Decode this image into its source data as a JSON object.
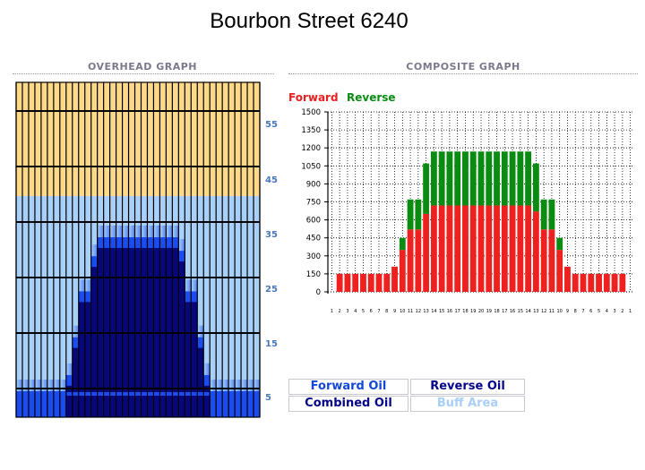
{
  "title": "Bourbon Street 6240",
  "overhead": {
    "title": "OVERHEAD GRAPH",
    "scale_labels": [
      "55",
      "45",
      "35",
      "25",
      "15",
      "5"
    ],
    "colors": {
      "buff": "#ffd98a",
      "light_blue": "#a8d0f8",
      "navy": "#07077a",
      "bright_blue": "#1a4cf0",
      "grid": "#000000"
    }
  },
  "composite": {
    "title": "COMPOSITE GRAPH",
    "legend_forward": "Forward",
    "legend_reverse": "Reverse",
    "forward_color": "#ee2020",
    "reverse_color": "#0a8c12"
  },
  "legend_boxes": {
    "forward_oil": "Forward Oil",
    "reverse_oil": "Reverse Oil",
    "combined_oil": "Combined Oil",
    "buff_area": "Buff Area"
  },
  "chart_data": {
    "type": "bar",
    "stacked": true,
    "categories": [
      "1",
      "2",
      "3",
      "4",
      "5",
      "6",
      "7",
      "8",
      "9",
      "10",
      "11",
      "12",
      "13",
      "14",
      "15",
      "16",
      "17",
      "18",
      "19",
      "20",
      "19",
      "18",
      "17",
      "16",
      "15",
      "14",
      "13",
      "12",
      "11",
      "10",
      "9",
      "8",
      "7",
      "6",
      "5",
      "4",
      "3",
      "2",
      "1"
    ],
    "series": [
      {
        "name": "Forward",
        "values": [
          0,
          150,
          150,
          150,
          150,
          150,
          150,
          150,
          210,
          350,
          520,
          520,
          650,
          720,
          720,
          720,
          720,
          720,
          720,
          720,
          720,
          720,
          720,
          720,
          720,
          720,
          670,
          520,
          520,
          350,
          210,
          150,
          150,
          150,
          150,
          150,
          150,
          150,
          0
        ]
      },
      {
        "name": "Reverse",
        "values": [
          0,
          0,
          0,
          0,
          0,
          0,
          0,
          0,
          0,
          100,
          250,
          250,
          420,
          450,
          450,
          450,
          450,
          450,
          450,
          450,
          450,
          450,
          450,
          450,
          450,
          450,
          400,
          250,
          250,
          100,
          0,
          0,
          0,
          0,
          0,
          0,
          0,
          0,
          0
        ]
      }
    ],
    "y_ticks": [
      0,
      150,
      300,
      450,
      600,
      750,
      900,
      1050,
      1200,
      1350,
      1500
    ],
    "ylim": [
      0,
      1500
    ],
    "grid": true
  }
}
